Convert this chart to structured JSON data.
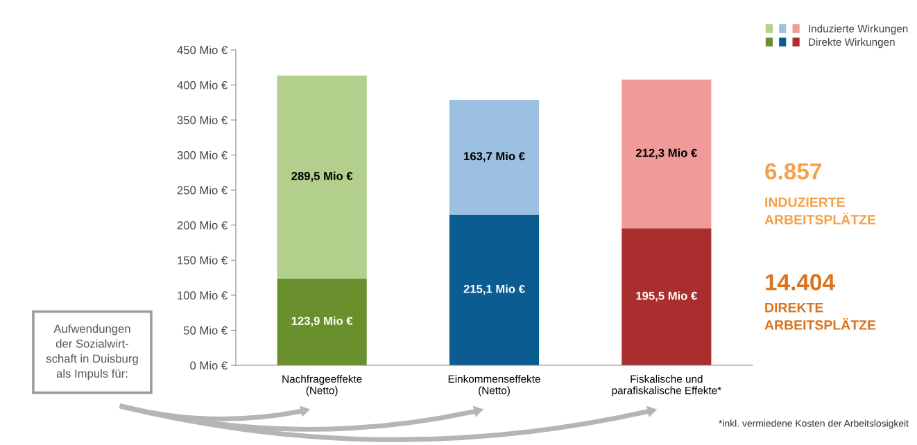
{
  "chart_data": {
    "type": "bar",
    "stacked": true,
    "categories": [
      "Nachfrageeffekte\n(Netto)",
      "Einkommenseffekte\n(Netto)",
      "Fiskalische und\nparafiskalische Effekte*"
    ],
    "series": [
      {
        "name": "Direkte Wirkungen",
        "colors": [
          "#6a902e",
          "#0a5c91",
          "#ab2e2f"
        ],
        "values": [
          123.9,
          215.1,
          195.5
        ],
        "value_labels": [
          "123,9 Mio €",
          "215,1 Mio €",
          "195,5 Mio €"
        ]
      },
      {
        "name": "Induzierte Wirkungen",
        "colors": [
          "#b2d08b",
          "#9cc0e1",
          "#f09b99"
        ],
        "values": [
          289.5,
          163.7,
          212.3
        ],
        "value_labels": [
          "289,5 Mio €",
          "163,7 Mio €",
          "212,3 Mio €"
        ]
      }
    ],
    "ylim": [
      0,
      450
    ],
    "yticks": [
      {
        "value": 0,
        "label": "0 Mio €"
      },
      {
        "value": 50,
        "label": "50 Mio €"
      },
      {
        "value": 100,
        "label": "100 Mio €"
      },
      {
        "value": 150,
        "label": "150 Mio €"
      },
      {
        "value": 200,
        "label": "200 Mio €"
      },
      {
        "value": 250,
        "label": "250 Mio €"
      },
      {
        "value": 300,
        "label": "300 Mio €"
      },
      {
        "value": 350,
        "label": "350 Mio €"
      },
      {
        "value": 400,
        "label": "400 Mio €"
      },
      {
        "value": 450,
        "label": "450 Mio €"
      }
    ],
    "grid": false,
    "legend": "top right",
    "annotations": [
      "6.857",
      "INDUZIERTE\nARBEITSPLÄTZE",
      "14.404",
      "DIREKTE\nARBEITSPLÄTZE",
      "Aufwendungen\nder Sozialwirt-\nschaft in Duisburg\nals Impuls für:",
      "*inkl. vermiedene Kosten der Arbeitslosigkeit"
    ]
  }
}
